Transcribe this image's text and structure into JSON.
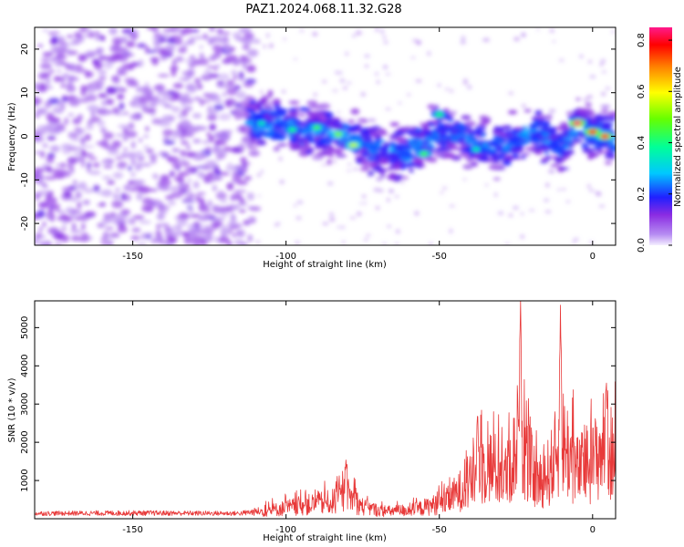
{
  "title": "PAZ1.2024.068.11.32.G28",
  "chart_data": [
    {
      "type": "heatmap",
      "xlabel": "Height of straight line (km)",
      "ylabel": "Frequency (Hz)",
      "xlim": [
        -182,
        7.5
      ],
      "ylim": [
        -25,
        25
      ],
      "xticks": [
        -150,
        -100,
        -50,
        0
      ],
      "xtick_labels": [
        "-150",
        "-100",
        "-50",
        "0"
      ],
      "yticks": [
        20,
        10,
        0,
        -10,
        -20
      ],
      "ytick_labels": [
        "20",
        "10",
        "0",
        "-10",
        "-20"
      ],
      "colorbar": {
        "label": "Normalized spectral amplitude",
        "range": [
          0,
          0.85
        ],
        "ticks": [
          0,
          0.2,
          0.4,
          0.6,
          0.8
        ],
        "tick_labels": [
          "0.0",
          "0.2",
          "0.4",
          "0.6",
          "0.8"
        ]
      },
      "ridge": [
        {
          "x": -110,
          "y": 3.0
        },
        {
          "x": -95,
          "y": 1.5
        },
        {
          "x": -80,
          "y": 0.0
        },
        {
          "x": -70,
          "y": -3.0
        },
        {
          "x": -60,
          "y": -3.5
        },
        {
          "x": -50,
          "y": 1.0
        },
        {
          "x": -40,
          "y": -1.0
        },
        {
          "x": -30,
          "y": -3.0
        },
        {
          "x": -20,
          "y": 2.0
        },
        {
          "x": -10,
          "y": -3.0
        },
        {
          "x": -5,
          "y": 3.0
        },
        {
          "x": 0,
          "y": 1.0
        },
        {
          "x": 6,
          "y": 0.0
        }
      ],
      "hotspots": [
        {
          "x": -108,
          "y": 3.0,
          "amp": 0.35
        },
        {
          "x": -98,
          "y": 1.5,
          "amp": 0.4
        },
        {
          "x": -90,
          "y": 2.0,
          "amp": 0.45
        },
        {
          "x": -83,
          "y": 0.5,
          "amp": 0.5
        },
        {
          "x": -78,
          "y": -2.0,
          "amp": 0.55
        },
        {
          "x": -55,
          "y": -4.0,
          "amp": 0.45
        },
        {
          "x": -50,
          "y": 5.0,
          "amp": 0.4
        },
        {
          "x": -38,
          "y": -3.0,
          "amp": 0.35
        },
        {
          "x": -5,
          "y": 3.0,
          "amp": 0.85
        },
        {
          "x": 0,
          "y": 1.0,
          "amp": 0.8
        },
        {
          "x": 4,
          "y": 0.0,
          "amp": 0.75
        }
      ]
    },
    {
      "type": "line",
      "xlabel": "Height of straight line (km)",
      "ylabel": "SNR (10 * v/v)",
      "xlim": [
        -182,
        7.5
      ],
      "ylim": [
        0,
        5700
      ],
      "xticks": [
        -150,
        -100,
        -50,
        0
      ],
      "xtick_labels": [
        "-150",
        "-100",
        "-50",
        "0"
      ],
      "yticks": [
        1000,
        2000,
        3000,
        4000,
        5000
      ],
      "ytick_labels": [
        "1000",
        "2000",
        "3000",
        "4000",
        "5000"
      ],
      "color": "#e83a3a",
      "envelope": [
        {
          "x": -182,
          "y": 180
        },
        {
          "x": -150,
          "y": 200
        },
        {
          "x": -115,
          "y": 180
        },
        {
          "x": -105,
          "y": 350
        },
        {
          "x": -95,
          "y": 550
        },
        {
          "x": -85,
          "y": 700
        },
        {
          "x": -80,
          "y": 1000
        },
        {
          "x": -75,
          "y": 500
        },
        {
          "x": -68,
          "y": 300
        },
        {
          "x": -58,
          "y": 380
        },
        {
          "x": -48,
          "y": 700
        },
        {
          "x": -40,
          "y": 1500
        },
        {
          "x": -35,
          "y": 2300
        },
        {
          "x": -28,
          "y": 1800
        },
        {
          "x": -24,
          "y": 3200
        },
        {
          "x": -18,
          "y": 1500
        },
        {
          "x": -14,
          "y": 2000
        },
        {
          "x": -10,
          "y": 3300
        },
        {
          "x": -5,
          "y": 2000
        },
        {
          "x": 0,
          "y": 2300
        },
        {
          "x": 4,
          "y": 3200
        },
        {
          "x": 7.5,
          "y": 2400
        }
      ],
      "peaks": [
        {
          "x": -80.5,
          "y": 1550
        },
        {
          "x": -37.5,
          "y": 2850
        },
        {
          "x": -23.5,
          "y": 5750
        },
        {
          "x": -10.5,
          "y": 5600
        },
        {
          "x": 4.5,
          "y": 3650
        }
      ]
    }
  ]
}
